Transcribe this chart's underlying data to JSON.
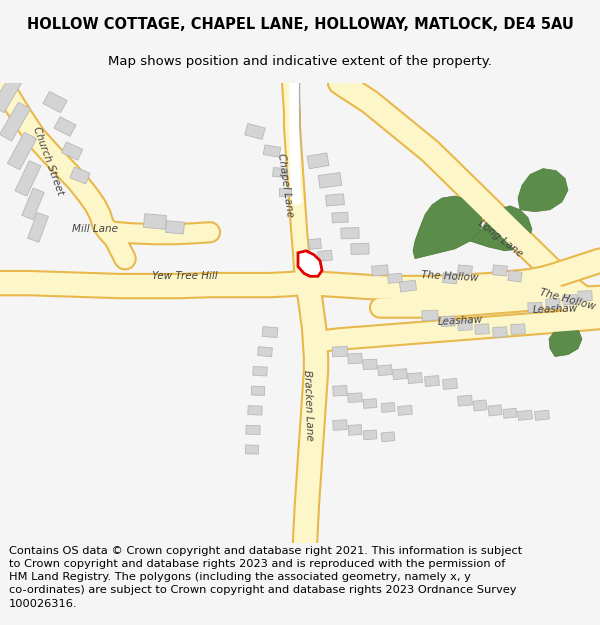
{
  "title": "HOLLOW COTTAGE, CHAPEL LANE, HOLLOWAY, MATLOCK, DE4 5AU",
  "subtitle": "Map shows position and indicative extent of the property.",
  "footer": "Contains OS data © Crown copyright and database right 2021. This information is subject\nto Crown copyright and database rights 2023 and is reproduced with the permission of\nHM Land Registry. The polygons (including the associated geometry, namely x, y\nco-ordinates) are subject to Crown copyright and database rights 2023 Ordnance Survey\n100026316.",
  "bg_color": "#f5f5f5",
  "map_bg": "#ffffff",
  "road_fill": "#fdf6c8",
  "road_stroke": "#e8b84b",
  "road_fill2": "#faf0c0",
  "minor_road_fill": "#ffffff",
  "minor_road_stroke": "#c8c8c8",
  "building_fill": "#d4d4d4",
  "building_stroke": "#b8b8b8",
  "green_fill": "#5c8c4a",
  "green_stroke": "#4a7a38",
  "red_fill": "#ffffff",
  "red_stroke": "#e00000",
  "label_color": "#333333",
  "title_fontsize": 10.5,
  "subtitle_fontsize": 9.5,
  "footer_fontsize": 8.2
}
